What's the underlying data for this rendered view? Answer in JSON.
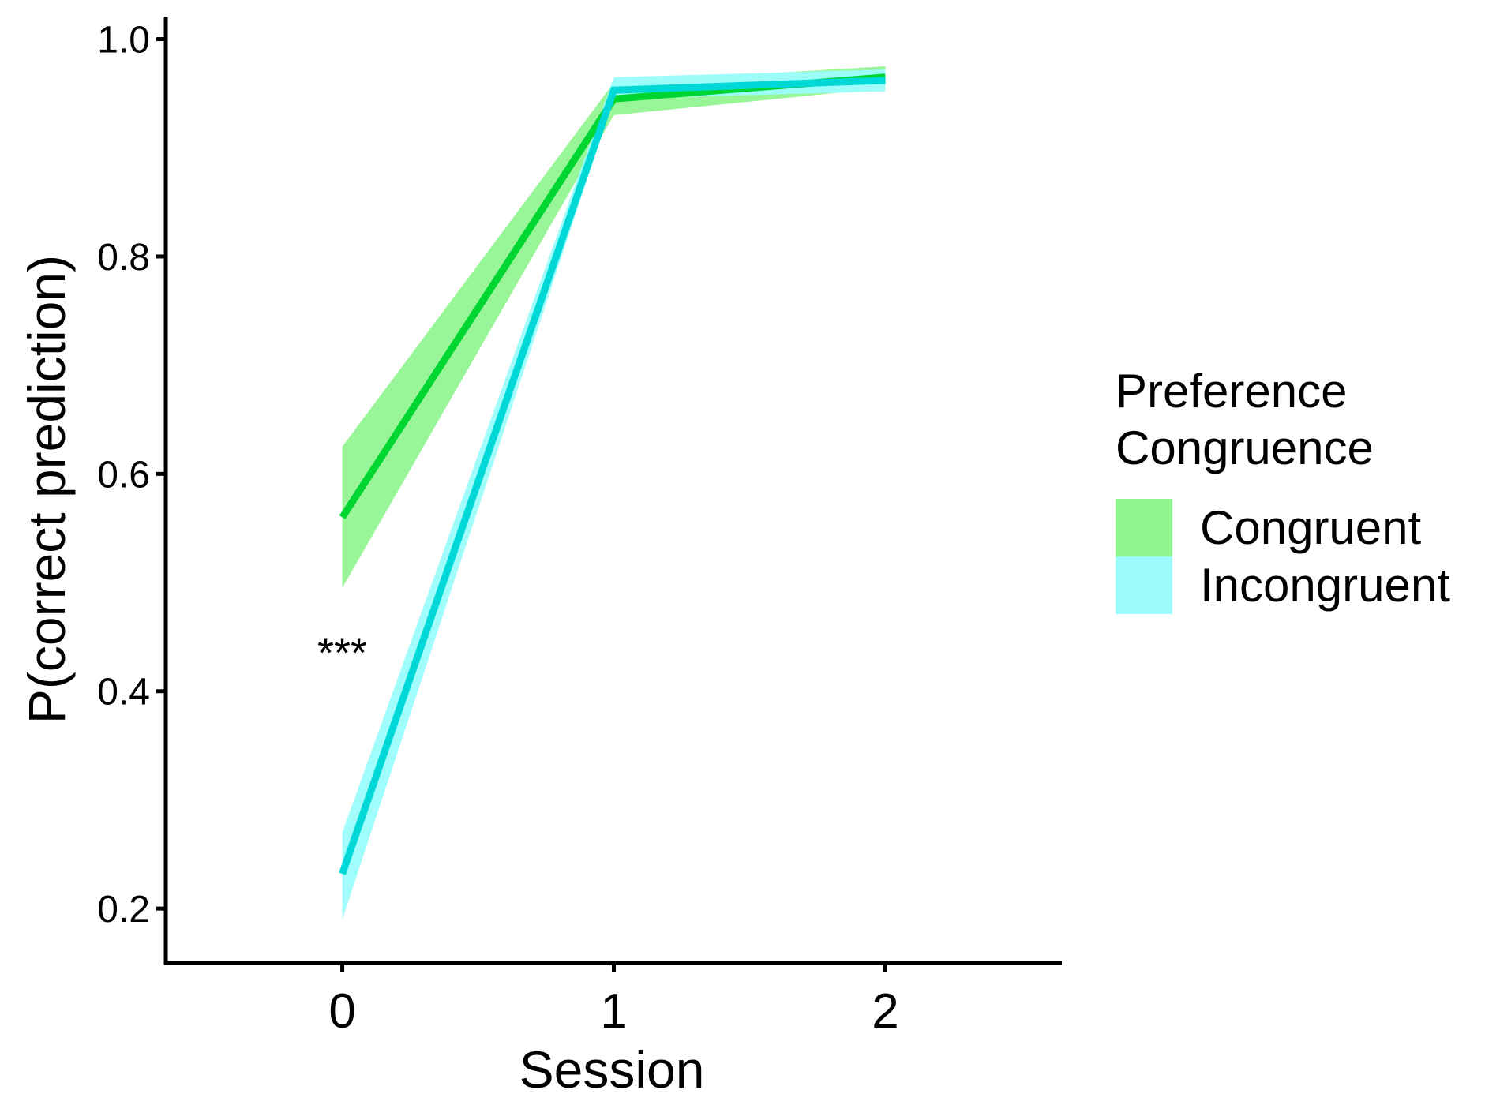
{
  "chart_data": {
    "type": "line",
    "xlabel": "Session",
    "ylabel": "P(correct prediction)",
    "x": [
      0,
      1,
      2
    ],
    "x_tick_labels": [
      "0",
      "1",
      "2"
    ],
    "xlim": [
      -0.65,
      2.65
    ],
    "ylim": [
      0.15,
      1.02
    ],
    "y_ticks": [
      0.2,
      0.4,
      0.6,
      0.8,
      1.0
    ],
    "y_tick_labels": [
      "0.2",
      "0.4",
      "0.6",
      "0.8",
      "1.0"
    ],
    "grid": false,
    "legend": {
      "title": "Preference\nCongruence",
      "placement": "right"
    },
    "series": [
      {
        "name": "Congruent",
        "values": [
          0.56,
          0.945,
          0.965
        ],
        "lower": [
          0.495,
          0.93,
          0.955
        ],
        "upper": [
          0.625,
          0.96,
          0.975
        ],
        "line_color": "#00D631",
        "ribbon_color": "#93F592"
      },
      {
        "name": "Incongruent",
        "values": [
          0.232,
          0.953,
          0.962
        ],
        "lower": [
          0.19,
          0.945,
          0.952
        ],
        "upper": [
          0.27,
          0.965,
          0.972
        ],
        "line_color": "#00D8D8",
        "ribbon_color": "#9CFCFC"
      }
    ],
    "annotations": [
      {
        "text": "***",
        "x": 0,
        "y": 0.435
      }
    ]
  }
}
